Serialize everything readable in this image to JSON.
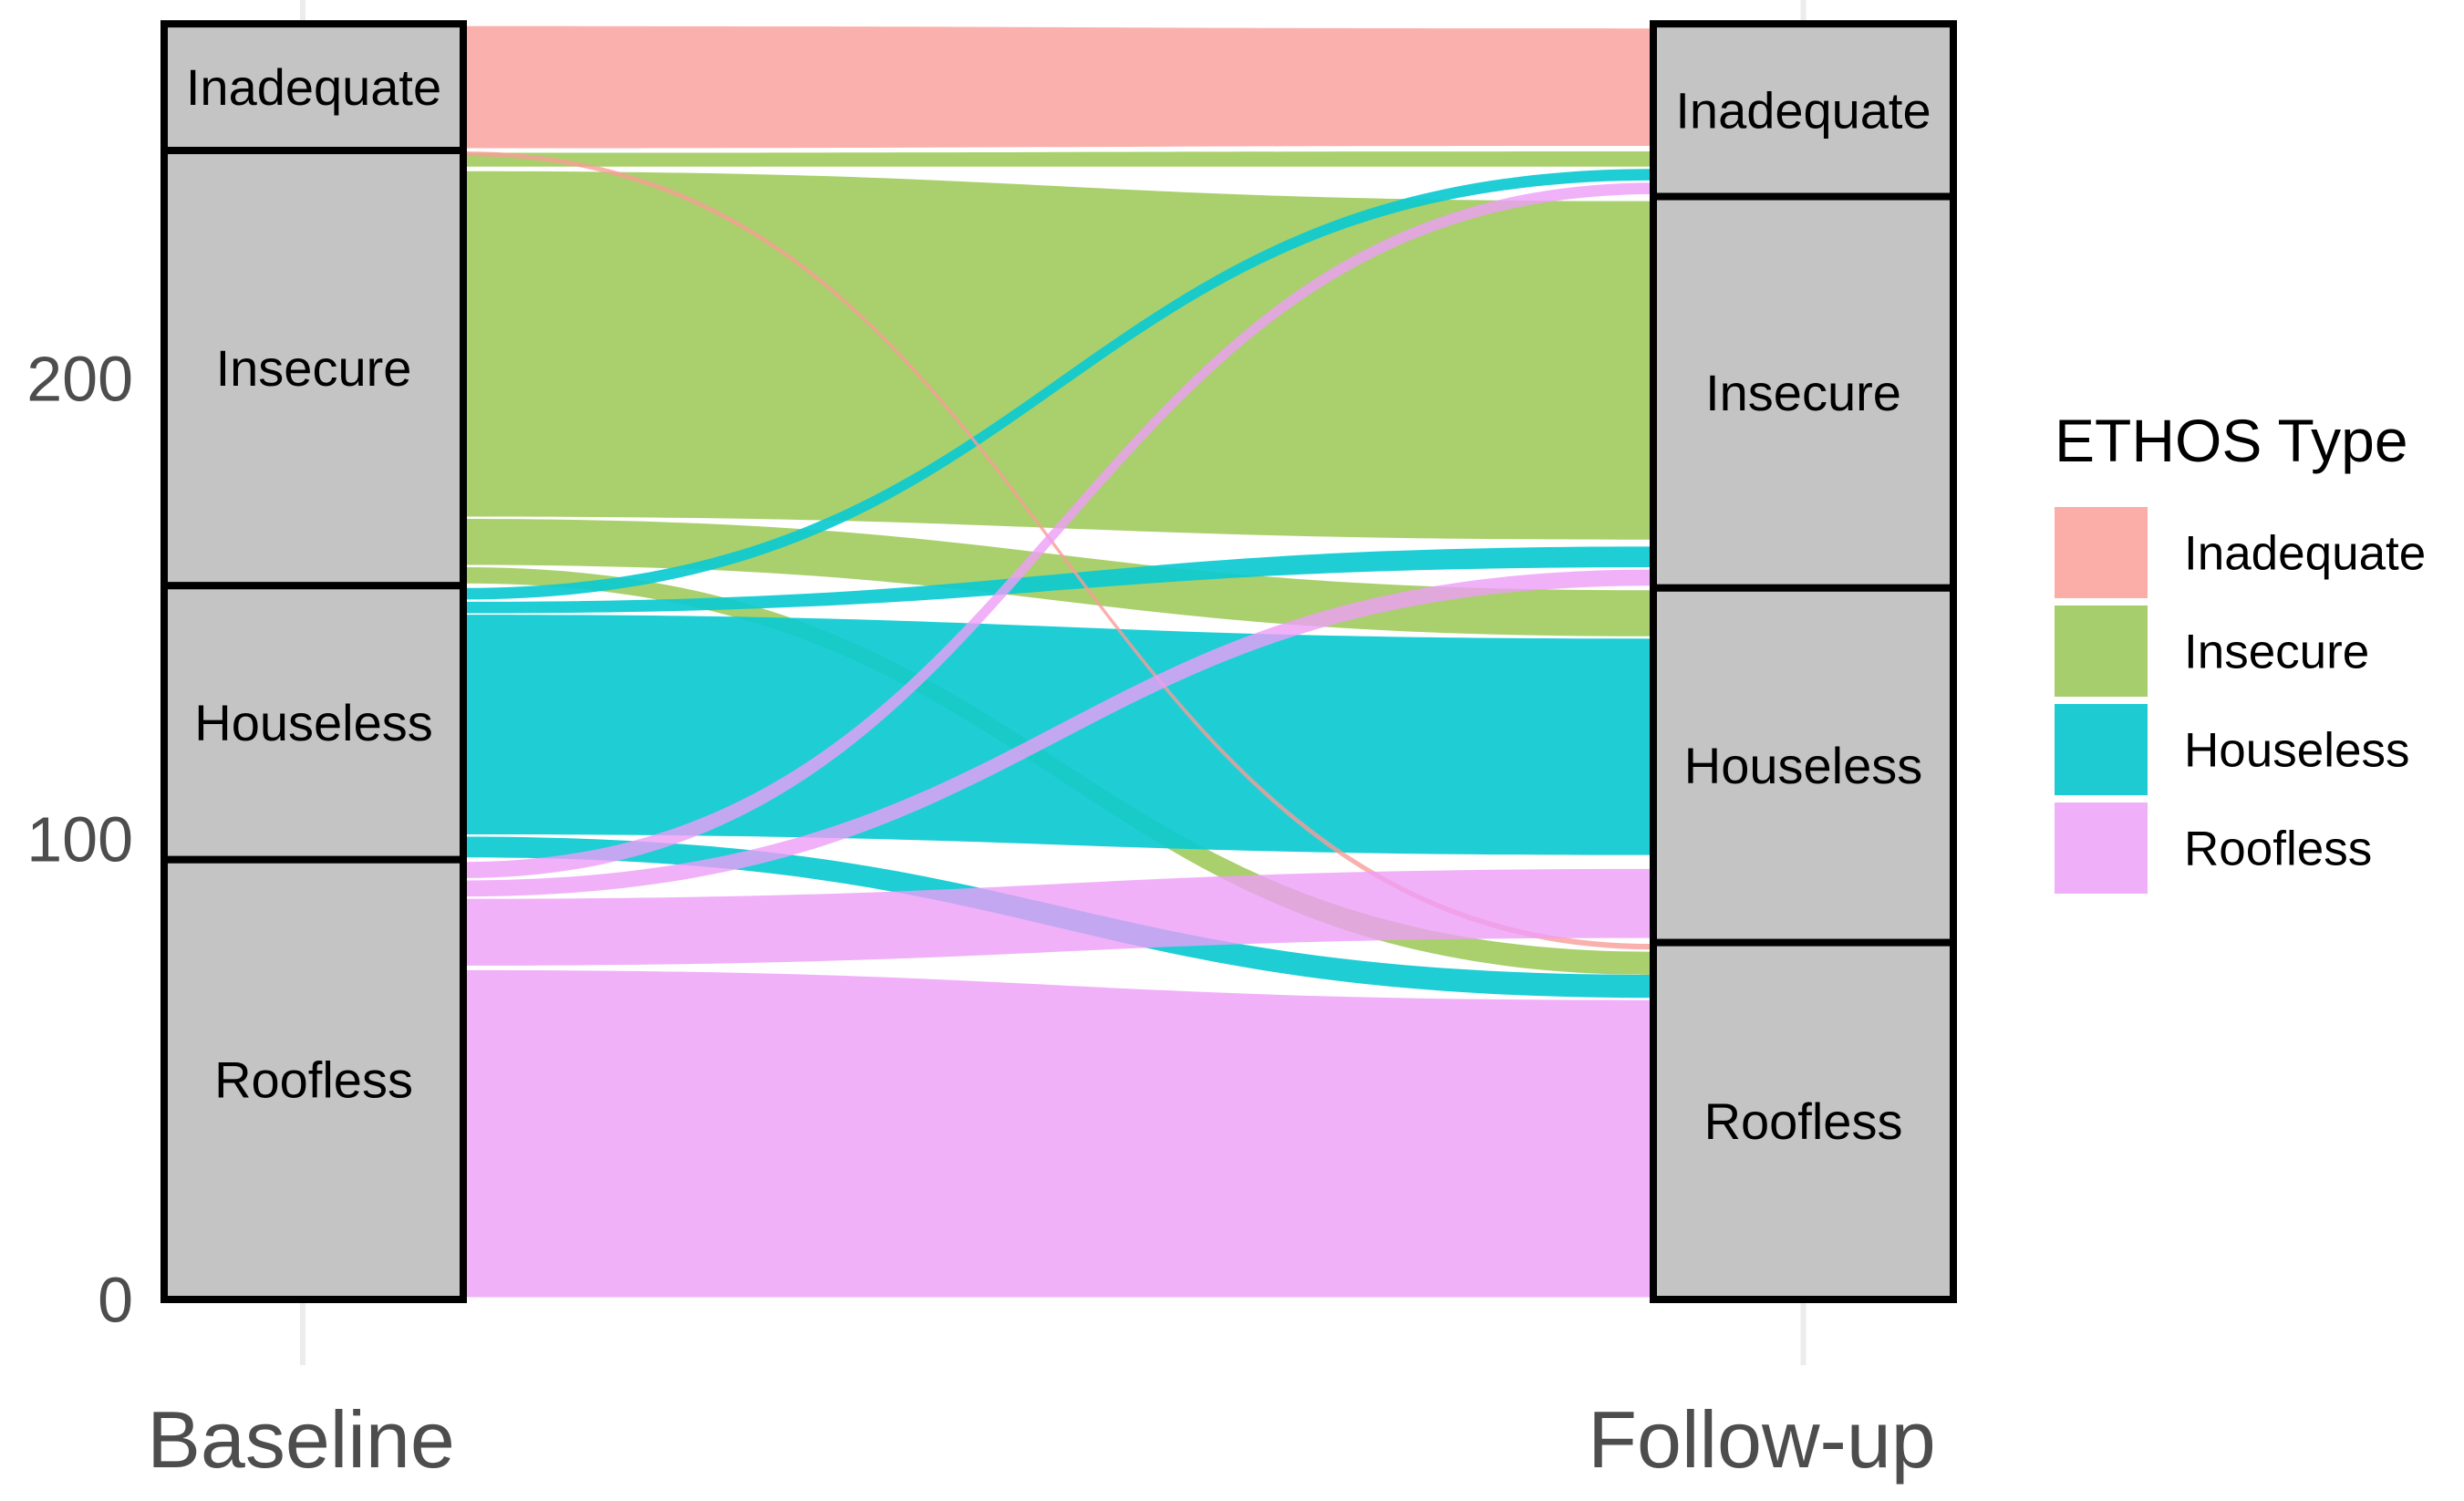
{
  "chart_data": {
    "type": "alluvial",
    "description": "Alluvial (Sankey) diagram of ETHOS homelessness type at Baseline vs Follow-up",
    "stages": [
      "Baseline",
      "Follow-up"
    ],
    "y_axis": {
      "ticks": [
        "0",
        "100",
        "200"
      ],
      "tick_values": [
        0,
        100,
        200
      ],
      "range": [
        0,
        277
      ],
      "grid": false
    },
    "ethos_types": [
      {
        "name": "Inadequate",
        "color": "#F99C97",
        "legend_color": "#FBADA8"
      },
      {
        "name": "Insecure",
        "color": "#A0CB5C",
        "legend_color": "#A6CE6C"
      },
      {
        "name": "Houseless",
        "color": "#0CCAD1",
        "legend_color": "#1FCBD3"
      },
      {
        "name": "Roofless",
        "color": "#ED9DF8",
        "legend_color": "#F0B0F9"
      }
    ],
    "strata": {
      "baseline": [
        {
          "name": "Inadequate",
          "value": 28,
          "span": [
            249.5,
            277
          ]
        },
        {
          "name": "Insecure",
          "value": 94,
          "span": [
            155,
            249.5
          ]
        },
        {
          "name": "Houseless",
          "value": 60,
          "span": [
            95.5,
            155
          ]
        },
        {
          "name": "Roofless",
          "value": 95,
          "span": [
            0,
            95.5
          ]
        }
      ],
      "followup": [
        {
          "name": "Inadequate",
          "value": 38,
          "span": [
            239.5,
            277
          ]
        },
        {
          "name": "Insecure",
          "value": 85,
          "span": [
            154.5,
            239.5
          ]
        },
        {
          "name": "Houseless",
          "value": 77,
          "span": [
            77.5,
            154.5
          ]
        },
        {
          "name": "Roofless",
          "value": 77,
          "span": [
            0,
            77.5
          ]
        }
      ]
    },
    "flows": [
      {
        "from": "Insecure",
        "to": "Inadequate",
        "value": 3,
        "left": [
          246,
          249
        ],
        "right": [
          246,
          249.3
        ]
      },
      {
        "from": "Insecure",
        "to": "Insecure",
        "value": 75,
        "left": [
          170,
          245
        ],
        "right": [
          165,
          238.5
        ]
      },
      {
        "from": "Insecure",
        "to": "Houseless",
        "value": 10,
        "left": [
          159.5,
          169.5
        ],
        "right": [
          144,
          154
        ]
      },
      {
        "from": "Insecure",
        "to": "Roofless",
        "value": 4,
        "left": [
          155.5,
          159
        ],
        "right": [
          70.5,
          75.5
        ]
      },
      {
        "from": "Houseless",
        "to": "Inadequate",
        "value": 3,
        "left": [
          152,
          154.5
        ],
        "right": [
          243,
          245.5
        ]
      },
      {
        "from": "Houseless",
        "to": "Insecure",
        "value": 2.5,
        "left": [
          149,
          151.5
        ],
        "right": [
          159,
          163.5
        ]
      },
      {
        "from": "Houseless",
        "to": "Houseless",
        "value": 47,
        "left": [
          101,
          148.7
        ],
        "right": [
          96.5,
          143.5
        ]
      },
      {
        "from": "Houseless",
        "to": "Roofless",
        "value": 4.5,
        "left": [
          96,
          100.5
        ],
        "right": [
          65.5,
          70.5
        ]
      },
      {
        "from": "Inadequate",
        "to": "Inadequate",
        "value": 26,
        "left": [
          250,
          276.5
        ],
        "right": [
          250.5,
          276
        ]
      },
      {
        "from": "Inadequate",
        "to": "Roofless",
        "value": 1,
        "left": [
          248.3,
          249.3
        ],
        "right": [
          76,
          77.2
        ]
      },
      {
        "from": "Roofless",
        "to": "Inadequate",
        "value": 3.5,
        "left": [
          91.5,
          95
        ],
        "right": [
          240,
          242.5
        ]
      },
      {
        "from": "Roofless",
        "to": "Insecure",
        "value": 3.5,
        "left": [
          87.5,
          91
        ],
        "right": [
          155,
          158.5
        ]
      },
      {
        "from": "Roofless",
        "to": "Houseless",
        "value": 14.5,
        "left": [
          72.5,
          87
        ],
        "right": [
          78.5,
          93.5
        ]
      },
      {
        "from": "Roofless",
        "to": "Roofless",
        "value": 71,
        "left": [
          0.5,
          71.5
        ],
        "right": [
          0.5,
          65
        ]
      }
    ]
  },
  "legend": {
    "title": "ETHOS Type",
    "items": [
      {
        "label": "Inadequate",
        "color": "#FBADA8"
      },
      {
        "label": "Insecure",
        "color": "#A6CE6C"
      },
      {
        "label": "Houseless",
        "color": "#1FCBD3"
      },
      {
        "label": "Roofless",
        "color": "#F0B0F9"
      }
    ]
  },
  "colors": {
    "stratum_fill": "#C4C4C4",
    "stratum_border": "#000000",
    "axis_text": "#4d4d4d",
    "tick_mark": "#ECECEC"
  }
}
